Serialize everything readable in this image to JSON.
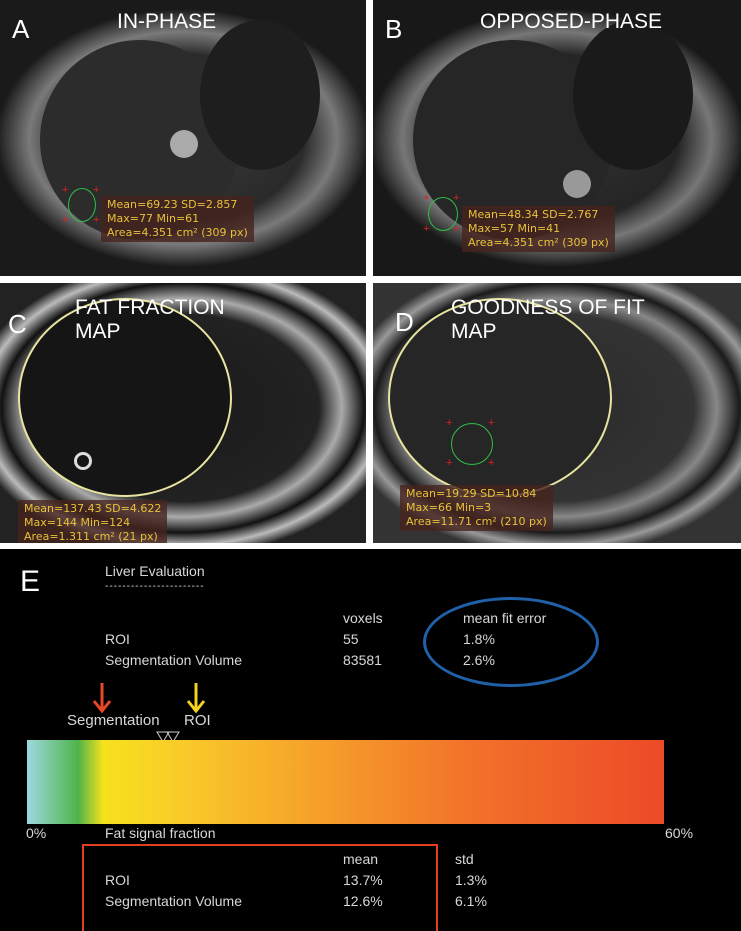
{
  "panels": [
    {
      "letter": "A",
      "title": "IN-PHASE",
      "stats": [
        "Mean=69.23 SD=2.857",
        "Max=77 Min=61",
        "Area=4.351 cm² (309 px)"
      ]
    },
    {
      "letter": "B",
      "title": "OPPOSED-PHASE",
      "stats": [
        "Mean=48.34 SD=2.767",
        "Max=57 Min=41",
        "Area=4.351 cm² (309 px)"
      ]
    },
    {
      "letter": "C",
      "title": "FAT FRACTION MAP",
      "stats": [
        "Mean=137.43 SD=4.622",
        "Max=144 Min=124",
        "Area=1.311 cm² (21 px)"
      ]
    },
    {
      "letter": "D",
      "title": "GOODNESS OF FIT MAP",
      "stats": [
        "Mean=19.29 SD=10.84",
        "Max=66 Min=3",
        "Area=11.71 cm² (210 px)"
      ]
    }
  ],
  "evaluation": {
    "letter": "E",
    "title": "Liver Evaluation",
    "separator": "-----------------------",
    "fit_table": {
      "headers": [
        "voxels",
        "mean fit error"
      ],
      "rows": [
        {
          "label": "ROI",
          "voxels": "55",
          "error": "1.8%"
        },
        {
          "label": "Segmentation Volume",
          "voxels": "83581",
          "error": "2.6%"
        }
      ]
    },
    "markers": {
      "segmentation": "Segmentation",
      "roi": "ROI"
    },
    "scale": {
      "min": "0%",
      "max": "60%",
      "label": "Fat signal fraction"
    },
    "fat_table": {
      "headers": [
        "mean",
        "std"
      ],
      "rows": [
        {
          "label": "ROI",
          "mean": "13.7%",
          "std": "1.3%"
        },
        {
          "label": "Segmentation Volume",
          "mean": "12.6%",
          "std": "6.1%"
        }
      ]
    },
    "colors": {
      "highlight_circle": "#2060a8",
      "highlight_box": "#e04020",
      "arrow_segmentation": "#e8472a",
      "arrow_roi": "#f2d21a"
    }
  }
}
